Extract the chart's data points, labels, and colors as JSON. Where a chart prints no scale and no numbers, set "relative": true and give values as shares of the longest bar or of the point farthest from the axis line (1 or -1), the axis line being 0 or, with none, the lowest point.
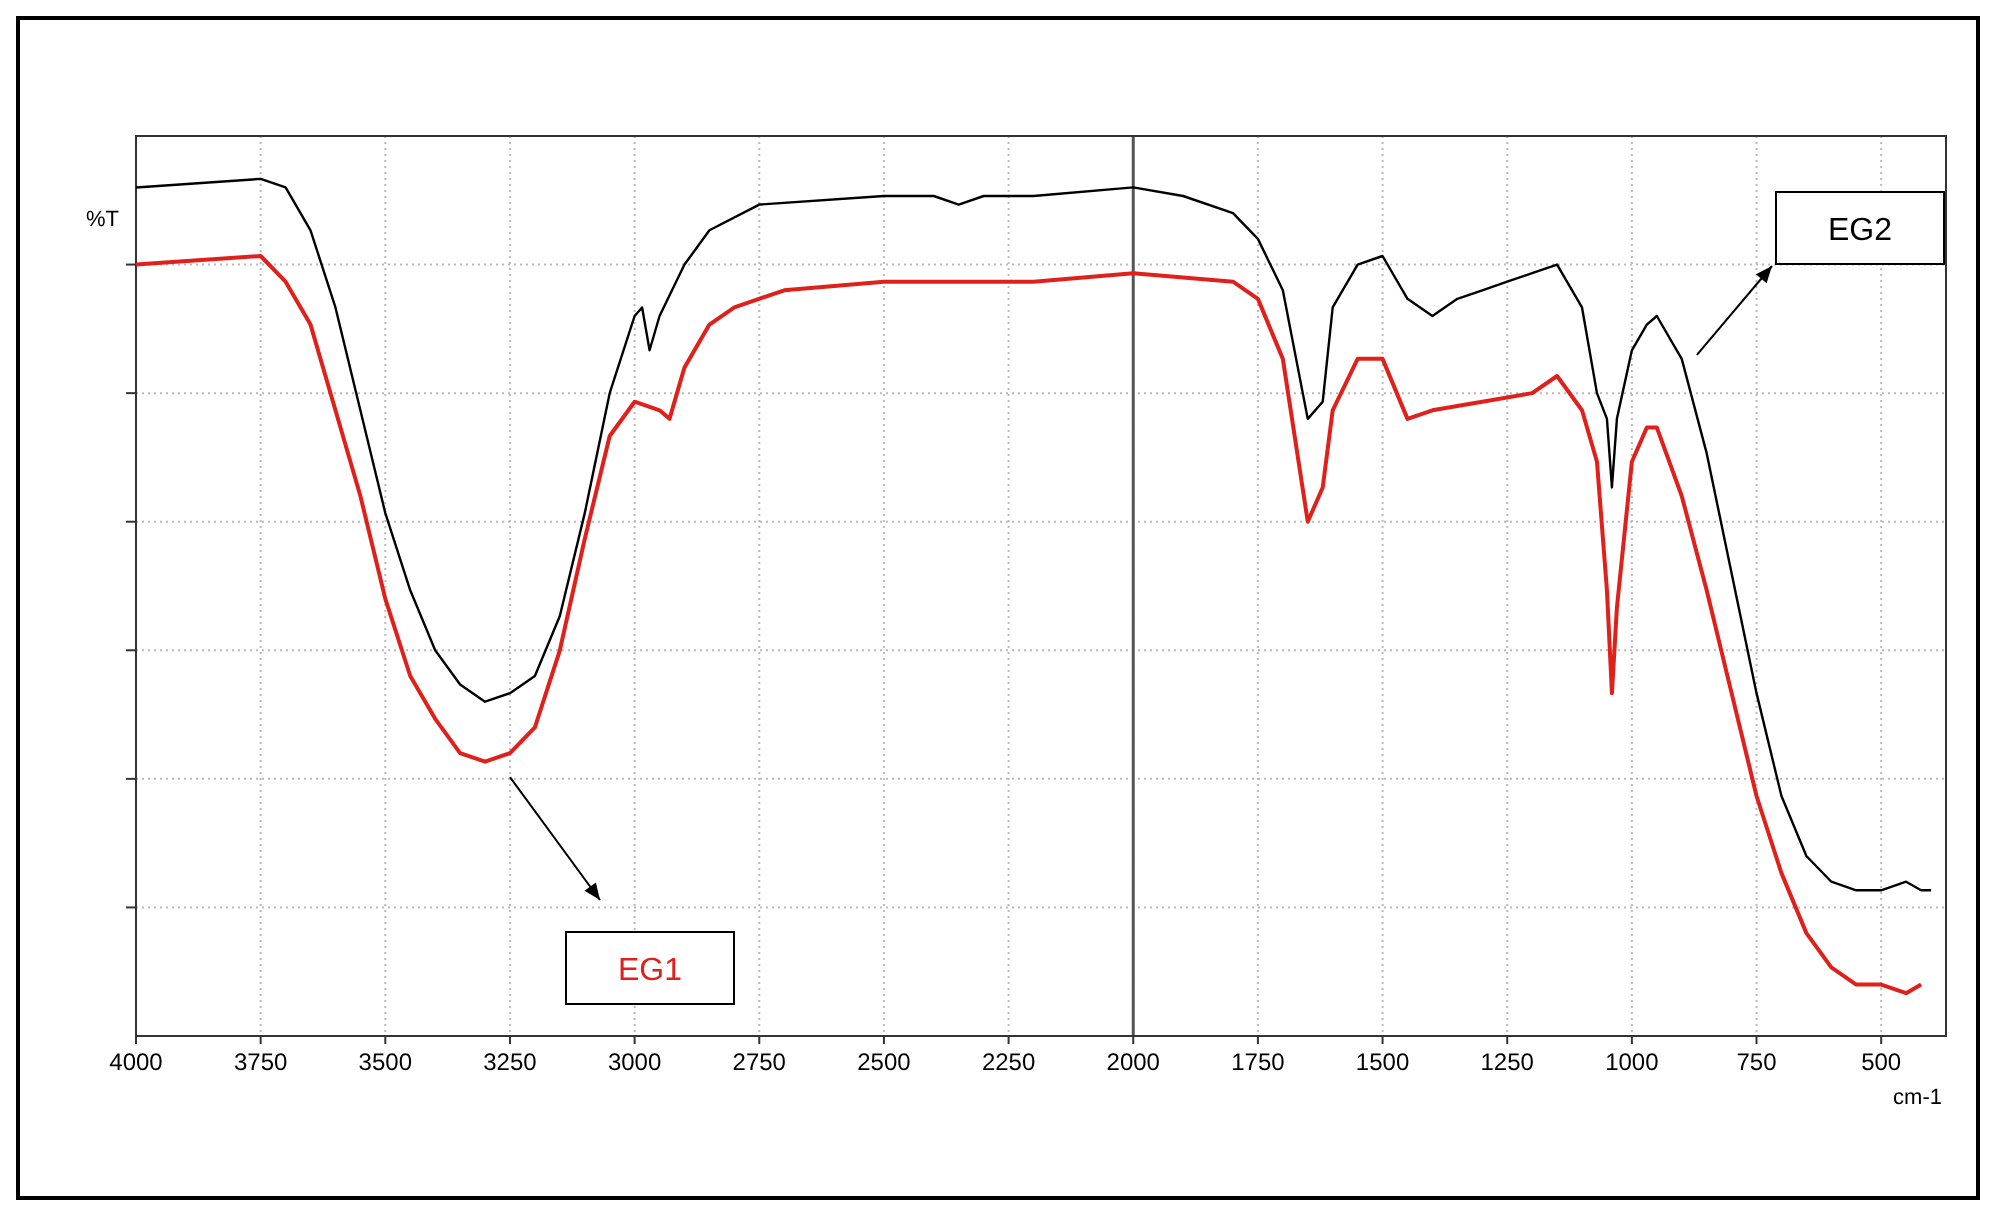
{
  "chart_data": {
    "type": "line",
    "relative": true,
    "xlabel": "cm-1",
    "ylabel": "%T",
    "xlim": [
      4000,
      370
    ],
    "xticks": [
      4000,
      3750,
      3500,
      3250,
      3000,
      2750,
      2500,
      2250,
      2000,
      1750,
      1500,
      1250,
      1000,
      750,
      500
    ],
    "grid": true,
    "ref_lines": [
      {
        "axis": "x",
        "value": 2000,
        "color": "#555555"
      }
    ],
    "series": [
      {
        "name": "EG2",
        "color": "#000000",
        "x": [
          4000,
          3750,
          3700,
          3650,
          3600,
          3550,
          3500,
          3450,
          3400,
          3350,
          3300,
          3250,
          3200,
          3150,
          3100,
          3050,
          3000,
          2985,
          2970,
          2950,
          2900,
          2850,
          2750,
          2500,
          2400,
          2350,
          2300,
          2200,
          2000,
          1900,
          1800,
          1750,
          1700,
          1650,
          1620,
          1600,
          1550,
          1500,
          1450,
          1400,
          1350,
          1300,
          1250,
          1200,
          1150,
          1100,
          1070,
          1050,
          1040,
          1030,
          1000,
          970,
          950,
          900,
          850,
          800,
          750,
          700,
          650,
          600,
          550,
          500,
          450,
          420,
          400
        ],
        "values": [
          0.99,
          1.0,
          0.99,
          0.94,
          0.85,
          0.73,
          0.61,
          0.52,
          0.45,
          0.41,
          0.39,
          0.4,
          0.42,
          0.49,
          0.61,
          0.75,
          0.84,
          0.85,
          0.8,
          0.84,
          0.9,
          0.94,
          0.97,
          0.98,
          0.98,
          0.97,
          0.98,
          0.98,
          0.99,
          0.98,
          0.96,
          0.93,
          0.87,
          0.72,
          0.74,
          0.85,
          0.9,
          0.91,
          0.86,
          0.84,
          0.86,
          0.87,
          0.88,
          0.89,
          0.9,
          0.85,
          0.75,
          0.72,
          0.64,
          0.72,
          0.8,
          0.83,
          0.84,
          0.79,
          0.68,
          0.54,
          0.4,
          0.28,
          0.21,
          0.18,
          0.17,
          0.17,
          0.18,
          0.17,
          0.17
        ]
      },
      {
        "name": "EG1",
        "color": "#e0201b",
        "x": [
          4000,
          3750,
          3700,
          3650,
          3600,
          3550,
          3500,
          3450,
          3400,
          3350,
          3300,
          3250,
          3200,
          3150,
          3100,
          3050,
          3000,
          2950,
          2930,
          2900,
          2850,
          2800,
          2700,
          2500,
          2200,
          2000,
          1800,
          1750,
          1700,
          1650,
          1620,
          1600,
          1550,
          1500,
          1450,
          1400,
          1300,
          1200,
          1150,
          1100,
          1070,
          1050,
          1040,
          1030,
          1000,
          970,
          950,
          900,
          850,
          800,
          750,
          700,
          650,
          600,
          550,
          500,
          450,
          420
        ],
        "values": [
          0.9,
          0.91,
          0.88,
          0.83,
          0.73,
          0.63,
          0.51,
          0.42,
          0.37,
          0.33,
          0.32,
          0.33,
          0.36,
          0.45,
          0.58,
          0.7,
          0.74,
          0.73,
          0.72,
          0.78,
          0.83,
          0.85,
          0.87,
          0.88,
          0.88,
          0.89,
          0.88,
          0.86,
          0.79,
          0.6,
          0.64,
          0.73,
          0.79,
          0.79,
          0.72,
          0.73,
          0.74,
          0.75,
          0.77,
          0.73,
          0.67,
          0.52,
          0.4,
          0.5,
          0.67,
          0.71,
          0.71,
          0.63,
          0.52,
          0.4,
          0.28,
          0.19,
          0.12,
          0.08,
          0.06,
          0.06,
          0.05,
          0.06
        ]
      }
    ]
  }
}
